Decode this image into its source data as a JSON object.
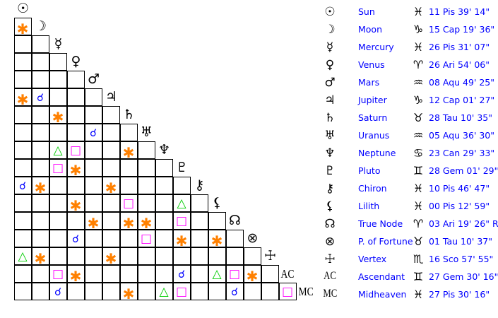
{
  "colors": {
    "sextile": "#ff8000",
    "conjunction": "#0000ff",
    "trine": "#00cc00",
    "square": "#ff00ff",
    "text": "#0000ff"
  },
  "aspect_symbols": {
    "sextile": "✱",
    "conjunction": "☌",
    "trine": "△",
    "square": "□"
  },
  "planets": [
    {
      "name": "Sun",
      "glyph": "☉",
      "sign_glyph": "♓︎",
      "position": "11 Pis 39' 14\""
    },
    {
      "name": "Moon",
      "glyph": "☽",
      "sign_glyph": "♑︎",
      "position": "15 Cap 19' 36\""
    },
    {
      "name": "Mercury",
      "glyph": "☿",
      "sign_glyph": "♓︎",
      "position": "26 Pis 31' 07\""
    },
    {
      "name": "Venus",
      "glyph": "♀",
      "sign_glyph": "♈︎",
      "position": "26 Ari 54' 06\""
    },
    {
      "name": "Mars",
      "glyph": "♂",
      "sign_glyph": "♒︎",
      "position": "08 Aqu 49' 25\""
    },
    {
      "name": "Jupiter",
      "glyph": "♃",
      "sign_glyph": "♑︎",
      "position": "12 Cap 01' 27\""
    },
    {
      "name": "Saturn",
      "glyph": "♄",
      "sign_glyph": "♉︎",
      "position": "28 Tau 10' 35\""
    },
    {
      "name": "Uranus",
      "glyph": "♅",
      "sign_glyph": "♒︎",
      "position": "05 Aqu 36' 30\""
    },
    {
      "name": "Neptune",
      "glyph": "♆",
      "sign_glyph": "♋︎",
      "position": "23 Can 29' 33\" R"
    },
    {
      "name": "Pluto",
      "glyph": "♇",
      "sign_glyph": "♊︎",
      "position": "28 Gem 01' 29\" R"
    },
    {
      "name": "Chiron",
      "glyph": "⚷",
      "sign_glyph": "♓︎",
      "position": "10 Pis 46' 47\""
    },
    {
      "name": "Lilith",
      "glyph": "⚸",
      "sign_glyph": "♓︎",
      "position": "00 Pis 12' 59\""
    },
    {
      "name": "True Node",
      "glyph": "☊",
      "sign_glyph": "♈︎",
      "position": "03 Ari 19' 26\" R"
    },
    {
      "name": "P. of Fortune",
      "glyph": "⊗",
      "sign_glyph": "♉︎",
      "position": "01 Tau 10' 37\""
    },
    {
      "name": "Vertex",
      "glyph": "☩",
      "sign_glyph": "♏︎",
      "position": "16 Sco 57' 55\""
    },
    {
      "name": "Ascendant",
      "glyph": "AC",
      "sign_glyph": "♊︎",
      "position": "27 Gem 30' 16\""
    },
    {
      "name": "Midheaven",
      "glyph": "MC",
      "sign_glyph": "♓︎",
      "position": "27 Pis 30' 16\""
    }
  ],
  "aspects": [
    {
      "p1": "Moon",
      "p2": "Sun",
      "type": "sextile"
    },
    {
      "p1": "Jupiter",
      "p2": "Sun",
      "type": "sextile"
    },
    {
      "p1": "Jupiter",
      "p2": "Moon",
      "type": "conjunction"
    },
    {
      "p1": "Saturn",
      "p2": "Mercury",
      "type": "sextile"
    },
    {
      "p1": "Uranus",
      "p2": "Mars",
      "type": "conjunction"
    },
    {
      "p1": "Neptune",
      "p2": "Mercury",
      "type": "trine"
    },
    {
      "p1": "Neptune",
      "p2": "Venus",
      "type": "square"
    },
    {
      "p1": "Neptune",
      "p2": "Saturn",
      "type": "sextile"
    },
    {
      "p1": "Pluto",
      "p2": "Mercury",
      "type": "square"
    },
    {
      "p1": "Pluto",
      "p2": "Venus",
      "type": "sextile"
    },
    {
      "p1": "Chiron",
      "p2": "Sun",
      "type": "conjunction"
    },
    {
      "p1": "Chiron",
      "p2": "Moon",
      "type": "sextile"
    },
    {
      "p1": "Chiron",
      "p2": "Jupiter",
      "type": "sextile"
    },
    {
      "p1": "Lilith",
      "p2": "Venus",
      "type": "sextile"
    },
    {
      "p1": "Lilith",
      "p2": "Saturn",
      "type": "square"
    },
    {
      "p1": "Lilith",
      "p2": "Pluto",
      "type": "trine"
    },
    {
      "p1": "True Node",
      "p2": "Mars",
      "type": "sextile"
    },
    {
      "p1": "True Node",
      "p2": "Saturn",
      "type": "sextile"
    },
    {
      "p1": "True Node",
      "p2": "Uranus",
      "type": "sextile"
    },
    {
      "p1": "True Node",
      "p2": "Pluto",
      "type": "square"
    },
    {
      "p1": "P. of Fortune",
      "p2": "Venus",
      "type": "conjunction"
    },
    {
      "p1": "P. of Fortune",
      "p2": "Uranus",
      "type": "square"
    },
    {
      "p1": "P. of Fortune",
      "p2": "Pluto",
      "type": "sextile"
    },
    {
      "p1": "P. of Fortune",
      "p2": "Lilith",
      "type": "sextile"
    },
    {
      "p1": "Vertex",
      "p2": "Sun",
      "type": "trine"
    },
    {
      "p1": "Vertex",
      "p2": "Moon",
      "type": "sextile"
    },
    {
      "p1": "Vertex",
      "p2": "Jupiter",
      "type": "sextile"
    },
    {
      "p1": "Ascendant",
      "p2": "Mercury",
      "type": "square"
    },
    {
      "p1": "Ascendant",
      "p2": "Venus",
      "type": "sextile"
    },
    {
      "p1": "Ascendant",
      "p2": "Pluto",
      "type": "conjunction"
    },
    {
      "p1": "Ascendant",
      "p2": "Lilith",
      "type": "trine"
    },
    {
      "p1": "Ascendant",
      "p2": "True Node",
      "type": "square"
    },
    {
      "p1": "Ascendant",
      "p2": "P. of Fortune",
      "type": "sextile"
    },
    {
      "p1": "Midheaven",
      "p2": "Mercury",
      "type": "conjunction"
    },
    {
      "p1": "Midheaven",
      "p2": "Saturn",
      "type": "sextile"
    },
    {
      "p1": "Midheaven",
      "p2": "Neptune",
      "type": "trine"
    },
    {
      "p1": "Midheaven",
      "p2": "Pluto",
      "type": "square"
    },
    {
      "p1": "Midheaven",
      "p2": "True Node",
      "type": "conjunction"
    },
    {
      "p1": "Midheaven",
      "p2": "Ascendant",
      "type": "square"
    }
  ]
}
